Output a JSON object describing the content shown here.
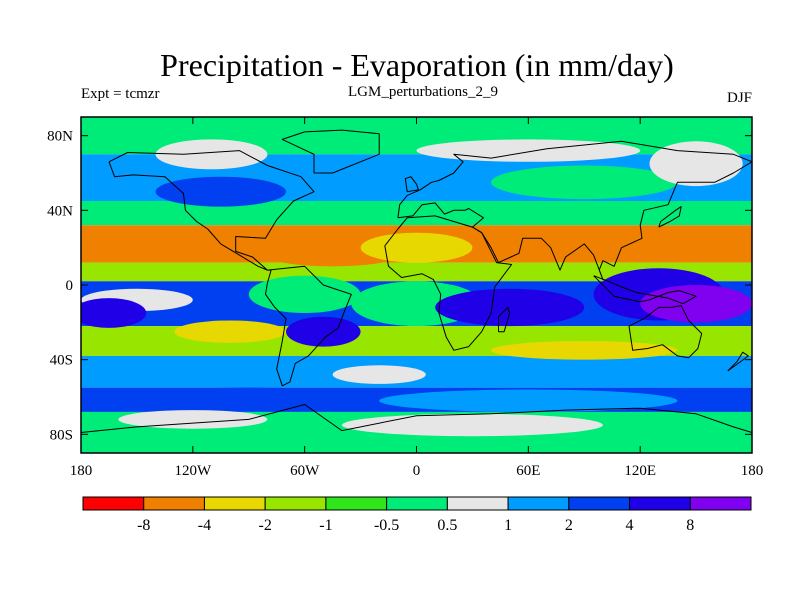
{
  "chart_data": {
    "type": "heatmap",
    "title": "Precipitation - Evaporation (in mm/day)",
    "left_label": "Expt = tcmzr",
    "center_label": "LGM_perturbations_2_9",
    "right_label": "DJF",
    "x_ticks": [
      {
        "lon": -180,
        "label": "180"
      },
      {
        "lon": -120,
        "label": "120W"
      },
      {
        "lon": -60,
        "label": "60W"
      },
      {
        "lon": 0,
        "label": "0"
      },
      {
        "lon": 60,
        "label": "60E"
      },
      {
        "lon": 120,
        "label": "120E"
      },
      {
        "lon": 180,
        "label": "180"
      }
    ],
    "y_ticks": [
      {
        "lat": 80,
        "label": "80N"
      },
      {
        "lat": 40,
        "label": "40N"
      },
      {
        "lat": 0,
        "label": "0"
      },
      {
        "lat": -40,
        "label": "40S"
      },
      {
        "lat": -80,
        "label": "80S"
      }
    ],
    "xlim": [
      -180,
      180
    ],
    "ylim": [
      -90,
      90
    ],
    "colorbar": {
      "levels": [
        "-8",
        "-4",
        "-2",
        "-1",
        "-0.5",
        "0.5",
        "1",
        "2",
        "4",
        "8"
      ],
      "colors": [
        "#ff0000",
        "#f08000",
        "#e6d800",
        "#98e600",
        "#2ee61a",
        "#00ec78",
        "#e6e6e6",
        "#009cff",
        "#0040f0",
        "#2000e6",
        "#8000f0"
      ]
    },
    "field": {
      "description_free": true,
      "zonal_bands": [
        {
          "lat_from": 90,
          "lat_to": 70,
          "class": 5
        },
        {
          "lat_from": 70,
          "lat_to": 45,
          "class": 7
        },
        {
          "lat_from": 45,
          "lat_to": 32,
          "class": 5
        },
        {
          "lat_from": 32,
          "lat_to": 12,
          "class": 1
        },
        {
          "lat_from": 12,
          "lat_to": 2,
          "class": 3
        },
        {
          "lat_from": 2,
          "lat_to": -22,
          "class": 8
        },
        {
          "lat_from": -22,
          "lat_to": -38,
          "class": 3
        },
        {
          "lat_from": -38,
          "lat_to": -55,
          "class": 7
        },
        {
          "lat_from": -55,
          "lat_to": -68,
          "class": 8
        },
        {
          "lat_from": -68,
          "lat_to": -90,
          "class": 5
        }
      ]
    }
  }
}
